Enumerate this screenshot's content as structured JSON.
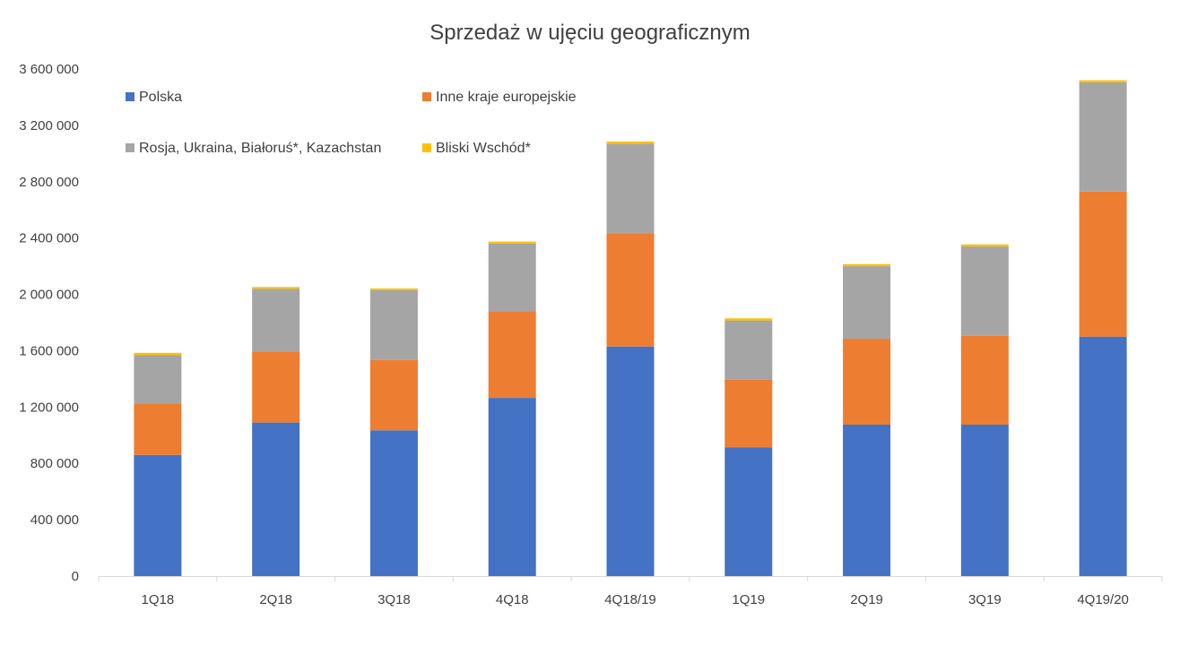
{
  "chart_data": {
    "type": "bar",
    "stacked": true,
    "title": "Sprzedaż w ujęciu geograficznym",
    "xlabel": "",
    "ylabel": "",
    "ylim": [
      0,
      3600000
    ],
    "y_ticks": [
      0,
      400000,
      800000,
      1200000,
      1600000,
      2000000,
      2400000,
      2800000,
      3200000,
      3600000
    ],
    "y_tick_labels": [
      "0",
      "400 000",
      "800 000",
      "1 200 000",
      "1 600 000",
      "2 000 000",
      "2 400 000",
      "2 800 000",
      "3 200 000",
      "3 600 000"
    ],
    "grid": false,
    "legend_position": "top",
    "categories": [
      "1Q18",
      "2Q18",
      "3Q18",
      "4Q18",
      "4Q18/19",
      "1Q19",
      "2Q19",
      "3Q19",
      "4Q19/20"
    ],
    "series": [
      {
        "name": "Polska",
        "color": "#4472C4",
        "values": [
          860000,
          1090000,
          1035000,
          1265000,
          1630000,
          915000,
          1075000,
          1075000,
          1700000
        ]
      },
      {
        "name": "Inne kraje europejskie",
        "color": "#ED7D31",
        "values": [
          365000,
          505000,
          500000,
          615000,
          805000,
          480000,
          610000,
          630000,
          1030000
        ]
      },
      {
        "name": "Rosja, Ukraina, Białoruś*, Kazachstan",
        "color": "#A5A5A5",
        "values": [
          345000,
          445000,
          495000,
          480000,
          635000,
          420000,
          515000,
          635000,
          775000
        ]
      },
      {
        "name": "Bliski Wschód*",
        "color": "#FFC000",
        "values": [
          15000,
          12000,
          12000,
          15000,
          15000,
          15000,
          15000,
          15000,
          15000
        ]
      }
    ]
  }
}
